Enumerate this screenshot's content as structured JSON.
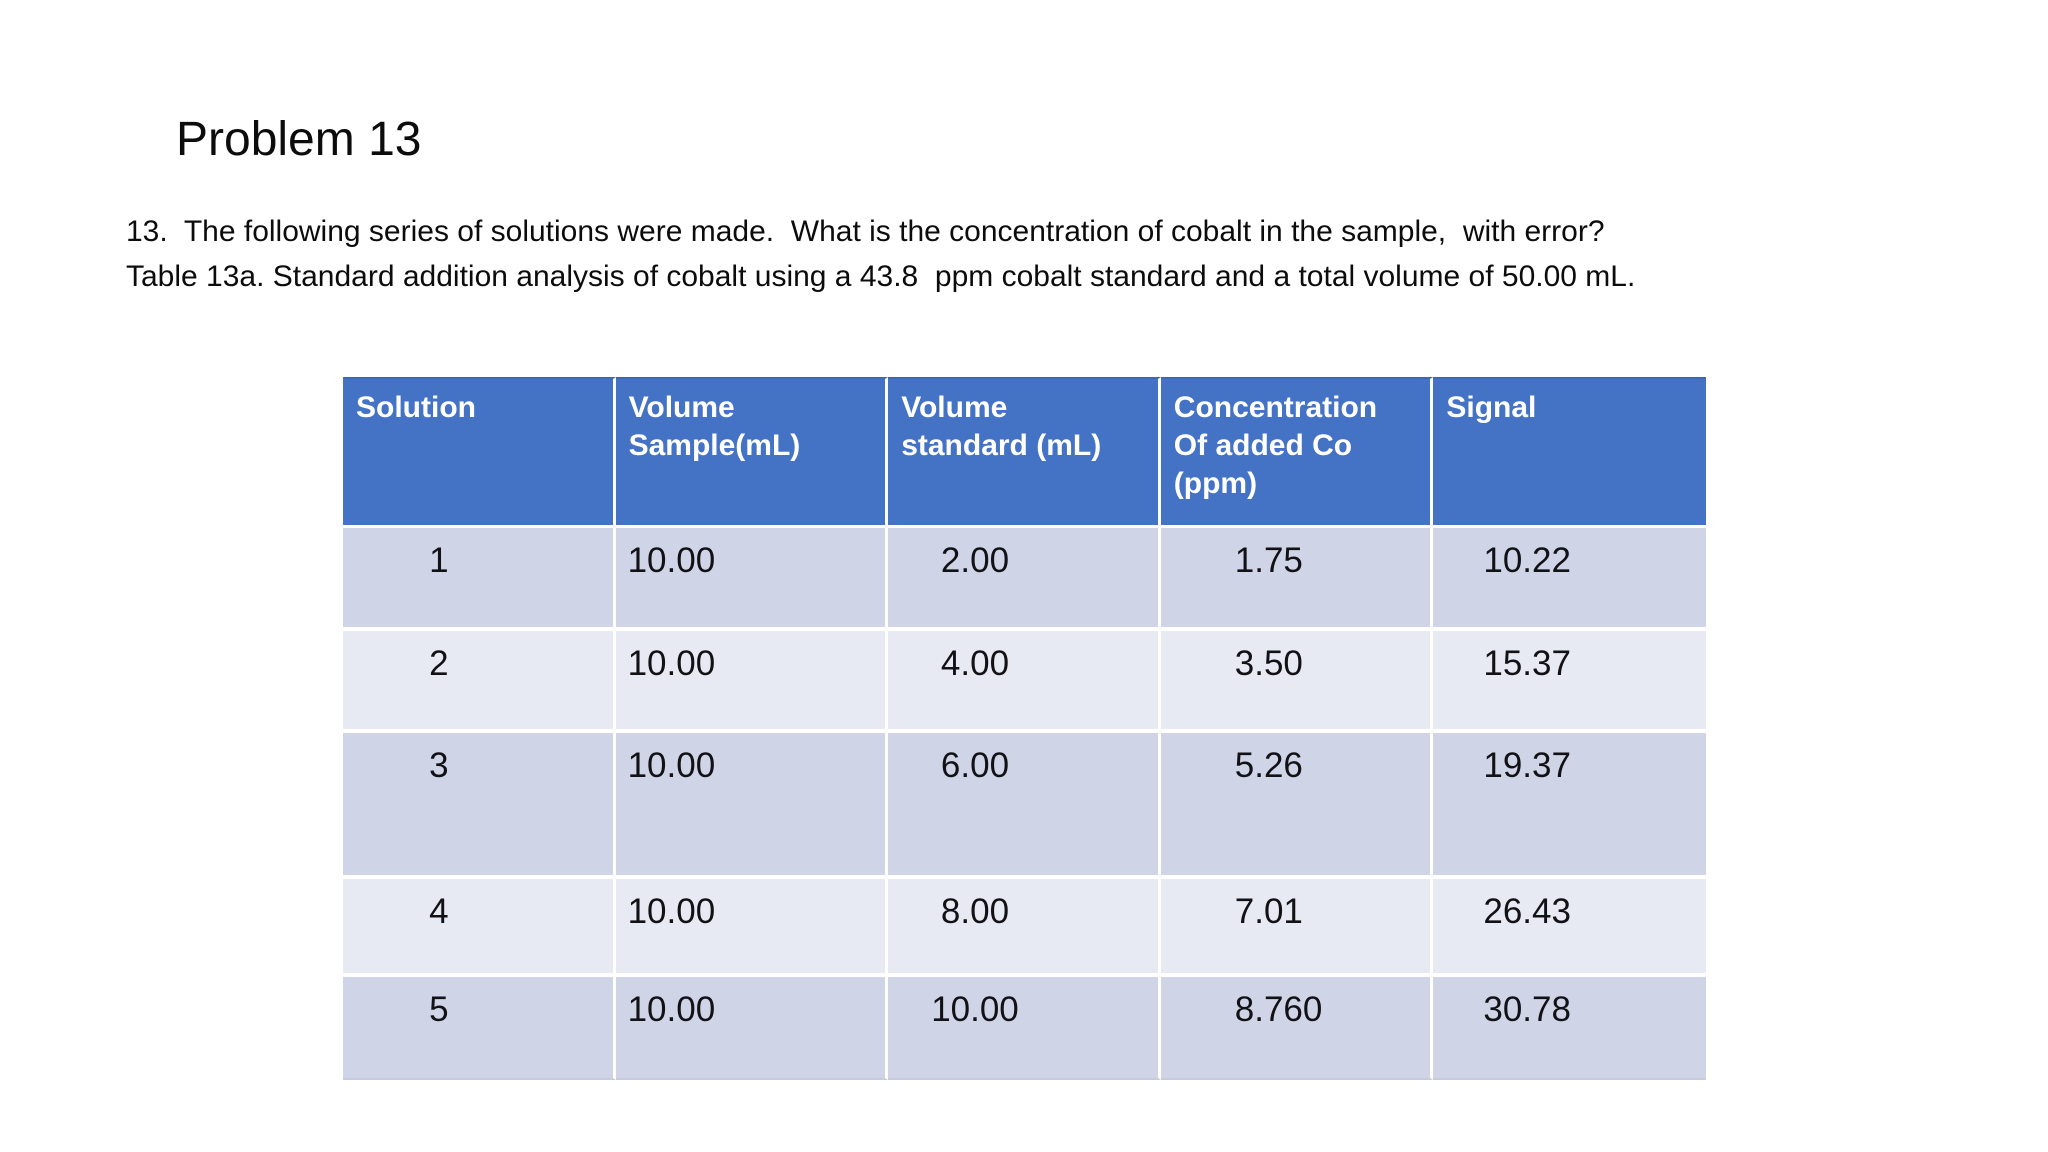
{
  "slide": {
    "title": "Problem 13",
    "body_lines": [
      "13.  The following series of solutions were made.  What is the concentration of cobalt in the sample,  with error?",
      "Table 13a. Standard addition analysis of cobalt using a 43.8  ppm cobalt standard and a total volume of 50.00 mL."
    ]
  },
  "table": {
    "headers": [
      "Solution",
      "Volume\nSample(mL)",
      "Volume\nstandard (mL)",
      "Concentration\nOf added Co\n(ppm)",
      "Signal"
    ],
    "rows": [
      {
        "solution": "1",
        "volume_sample": "10.00",
        "volume_standard": "2.00",
        "conc_added": "1.75",
        "signal": "10.22"
      },
      {
        "solution": "2",
        "volume_sample": "10.00",
        "volume_standard": "4.00",
        "conc_added": "3.50",
        "signal": "15.37"
      },
      {
        "solution": "3",
        "volume_sample": "10.00",
        "volume_standard": "6.00",
        "conc_added": "5.26",
        "signal": "19.37"
      },
      {
        "solution": "4",
        "volume_sample": "10.00",
        "volume_standard": "8.00",
        "conc_added": "7.01",
        "signal": "26.43"
      },
      {
        "solution": "5",
        "volume_sample": "10.00",
        "volume_standard": "10.00",
        "conc_added": "8.760",
        "signal": "30.78"
      }
    ]
  },
  "colors": {
    "background": "#FFFFFF",
    "header_bg": "#4472C4",
    "band_dark": "#CFD4E7",
    "band_light": "#E8EAF3",
    "header_text": "#FFFFFF",
    "body_text": "#121216"
  }
}
